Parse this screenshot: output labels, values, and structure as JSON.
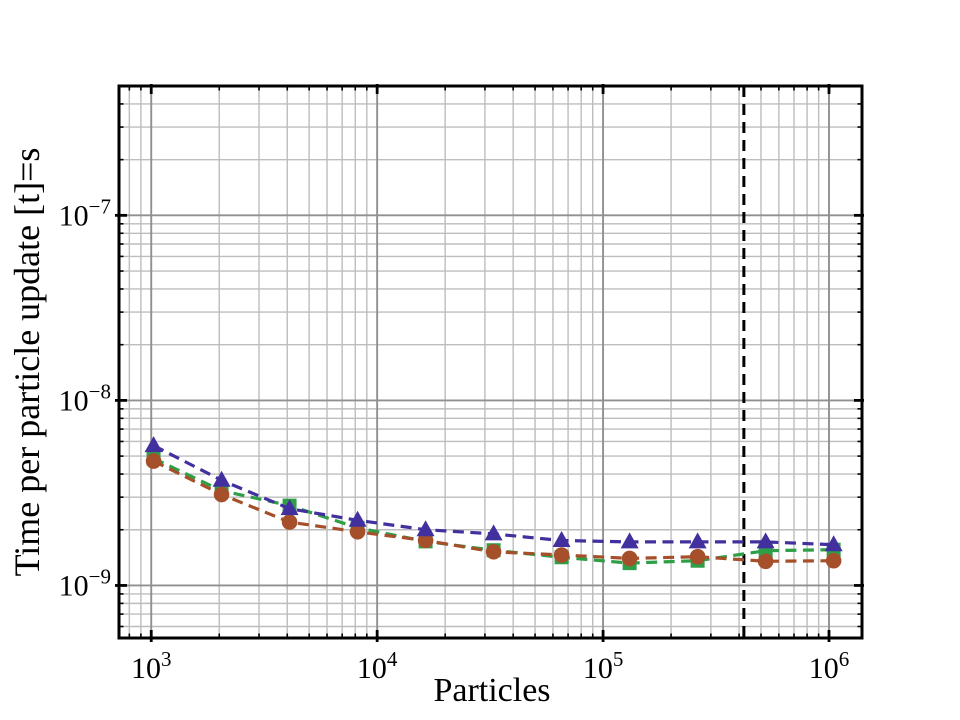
{
  "figure": {
    "background": "#ffffff"
  },
  "chart_data": {
    "type": "line",
    "title": "",
    "xlabel": "Particles",
    "ylabel": "Time per particle update [t]=s",
    "x_scale": "log",
    "y_scale": "log",
    "xlim": [
      720,
      1400000
    ],
    "ylim": [
      5.2e-10,
      5e-07
    ],
    "grid": "major+minor",
    "legend": "none",
    "x": [
      1024,
      2048,
      4096,
      8192,
      16384,
      32768,
      65536,
      131072,
      262144,
      524288,
      1048576
    ],
    "series": [
      {
        "name": "square-series",
        "marker": "square",
        "color": "#2e9f47",
        "linestyle": "dashed",
        "values": [
          4.85e-09,
          3.25e-09,
          2.7e-09,
          2.05e-09,
          1.73e-09,
          1.55e-09,
          1.42e-09,
          1.32e-09,
          1.36e-09,
          1.54e-09,
          1.56e-09
        ]
      },
      {
        "name": "circle-series",
        "marker": "circle",
        "color": "#a5502b",
        "linestyle": "dashed",
        "values": [
          4.7e-09,
          3.1e-09,
          2.2e-09,
          1.95e-09,
          1.75e-09,
          1.52e-09,
          1.46e-09,
          1.4e-09,
          1.43e-09,
          1.35e-09,
          1.36e-09
        ]
      },
      {
        "name": "triangle-series",
        "marker": "triangle",
        "color": "#43309f",
        "linestyle": "dashed",
        "values": [
          5.7e-09,
          3.7e-09,
          2.6e-09,
          2.25e-09,
          2e-09,
          1.9e-09,
          1.75e-09,
          1.72e-09,
          1.72e-09,
          1.72e-09,
          1.66e-09
        ]
      }
    ],
    "vline": {
      "x": 420000,
      "color": "#000000",
      "linestyle": "dashed"
    },
    "x_ticks": [
      {
        "value": 1000,
        "base": "10",
        "exp": "3"
      },
      {
        "value": 10000,
        "base": "10",
        "exp": "4"
      },
      {
        "value": 100000,
        "base": "10",
        "exp": "5"
      },
      {
        "value": 1000000,
        "base": "10",
        "exp": "6"
      }
    ],
    "y_ticks": [
      {
        "value": 1e-07,
        "base": "10",
        "exp": "−7"
      },
      {
        "value": 1e-08,
        "base": "10",
        "exp": "−8"
      },
      {
        "value": 1e-09,
        "base": "10",
        "exp": "−9"
      }
    ],
    "colors": {
      "spine": "#000000",
      "major_grid": "#909090",
      "minor_grid": "#bdbdbd"
    }
  }
}
